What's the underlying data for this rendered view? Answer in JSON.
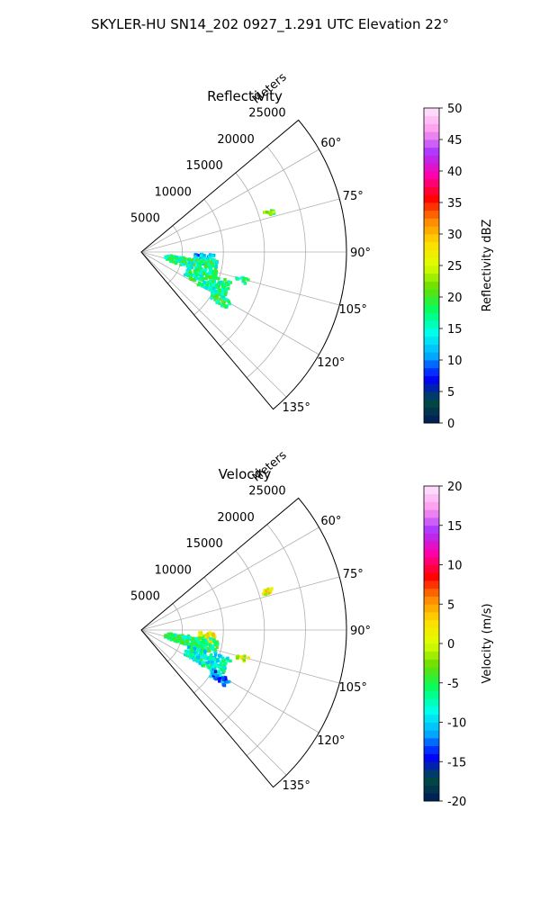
{
  "suptitle": "SKYLER-HU  SN14_202  0927_1.291 UTC Elevation 22°",
  "chart_data": [
    {
      "type": "polar-sector",
      "title": "Reflectivity",
      "radial_label": "Meters",
      "r_ticks": [
        5000,
        10000,
        15000,
        20000,
        25000
      ],
      "r_tick_labels": [
        "5000",
        "10000",
        "15000",
        "20000",
        "25000"
      ],
      "rlim": [
        0,
        25000
      ],
      "theta_range_deg": [
        50,
        140
      ],
      "theta_ticks_deg": [
        60,
        75,
        90,
        105,
        120,
        135
      ],
      "theta_tick_labels": [
        "60°",
        "75°",
        "90°",
        "105°",
        "120°",
        "135°"
      ],
      "grid": true,
      "colorbar": {
        "label": "Reflectivity dBZ",
        "vmin": 0,
        "vmax": 50,
        "ticks": [
          0,
          5,
          10,
          15,
          20,
          25,
          30,
          35,
          40,
          45,
          50
        ],
        "tick_labels": [
          "0",
          "5",
          "10",
          "15",
          "20",
          "25",
          "30",
          "35",
          "40",
          "45",
          "50"
        ]
      },
      "data_regions": [
        {
          "theta_deg": [
            92,
            101
          ],
          "r_m": [
            6500,
            9000
          ],
          "value": 12
        },
        {
          "theta_deg": [
            97,
            108
          ],
          "r_m": [
            3000,
            9500
          ],
          "value": 17
        },
        {
          "theta_deg": [
            108,
            120
          ],
          "r_m": [
            6000,
            11500
          ],
          "value": 17
        },
        {
          "theta_deg": [
            119,
            124
          ],
          "r_m": [
            10000,
            12500
          ],
          "value": 18
        },
        {
          "theta_deg": [
            104,
            107
          ],
          "r_m": [
            12000,
            13500
          ],
          "value": 17
        },
        {
          "theta_deg": [
            72,
            74
          ],
          "r_m": [
            15500,
            17000
          ],
          "value": 20
        }
      ]
    },
    {
      "type": "polar-sector",
      "title": "Velocity",
      "radial_label": "Meters",
      "r_ticks": [
        5000,
        10000,
        15000,
        20000,
        25000
      ],
      "r_tick_labels": [
        "5000",
        "10000",
        "15000",
        "20000",
        "25000"
      ],
      "rlim": [
        0,
        25000
      ],
      "theta_range_deg": [
        50,
        140
      ],
      "theta_ticks_deg": [
        60,
        75,
        90,
        105,
        120,
        135
      ],
      "theta_tick_labels": [
        "60°",
        "75°",
        "90°",
        "105°",
        "120°",
        "135°"
      ],
      "grid": true,
      "colorbar": {
        "label": "Velocity (m/s)",
        "vmin": -20,
        "vmax": 20,
        "ticks": [
          -20,
          -15,
          -10,
          -5,
          0,
          5,
          10,
          15,
          20
        ],
        "tick_labels": [
          "-20",
          "-15",
          "-10",
          "-5",
          "0",
          "5",
          "10",
          "15",
          "20"
        ]
      },
      "data_regions": [
        {
          "theta_deg": [
            92,
            100
          ],
          "r_m": [
            7000,
            9000
          ],
          "value": 1
        },
        {
          "theta_deg": [
            97,
            108
          ],
          "r_m": [
            3000,
            9500
          ],
          "value": -6
        },
        {
          "theta_deg": [
            108,
            120
          ],
          "r_m": [
            6000,
            11500
          ],
          "value": -8
        },
        {
          "theta_deg": [
            119,
            124
          ],
          "r_m": [
            10000,
            12500
          ],
          "value": -12
        },
        {
          "theta_deg": [
            104,
            107
          ],
          "r_m": [
            12000,
            13500
          ],
          "value": 1
        },
        {
          "theta_deg": [
            72,
            74
          ],
          "r_m": [
            15500,
            17000
          ],
          "value": 1
        }
      ]
    }
  ],
  "colormap_stops": [
    "#001a5c",
    "#004d40",
    "#0000ff",
    "#00aaff",
    "#00ffee",
    "#00ff66",
    "#66dd00",
    "#ddff00",
    "#ffdd00",
    "#ff8800",
    "#ff0000",
    "#ff00aa",
    "#aa33ff",
    "#ff99ee",
    "#ffe6ff"
  ]
}
